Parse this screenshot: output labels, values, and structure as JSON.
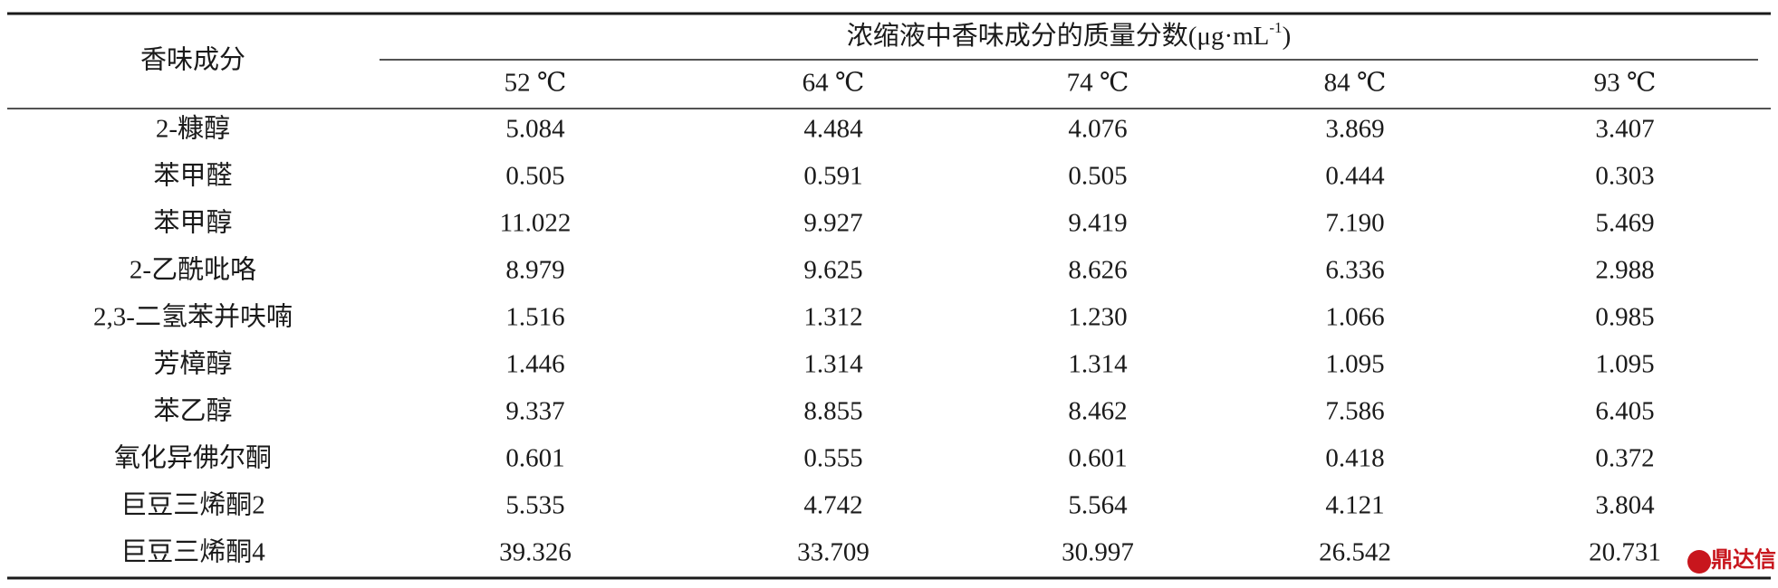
{
  "header": {
    "row_label": "香味成分",
    "group_title": "浓缩液中香味成分的质量分数(μg·mL",
    "group_title_sup": "-1",
    "group_title_end": ")",
    "columns": [
      "52 ℃",
      "64 ℃",
      "74 ℃",
      "84 ℃",
      "93 ℃"
    ]
  },
  "table": {
    "rows": [
      [
        "2-糠醇",
        "5.084",
        "4.484",
        "4.076",
        "3.869",
        "3.407"
      ],
      [
        "苯甲醛",
        "0.505",
        "0.591",
        "0.505",
        "0.444",
        "0.303"
      ],
      [
        "苯甲醇",
        "11.022",
        "9.927",
        "9.419",
        "7.190",
        "5.469"
      ],
      [
        "2-乙酰吡咯",
        "8.979",
        "9.625",
        "8.626",
        "6.336",
        "2.988"
      ],
      [
        "2,3-二氢苯并呋喃",
        "1.516",
        "1.312",
        "1.230",
        "1.066",
        "0.985"
      ],
      [
        "芳樟醇",
        "1.446",
        "1.314",
        "1.314",
        "1.095",
        "1.095"
      ],
      [
        "苯乙醇",
        "9.337",
        "8.855",
        "8.462",
        "7.586",
        "6.405"
      ],
      [
        "氧化异佛尔酮",
        "0.601",
        "0.555",
        "0.601",
        "0.418",
        "0.372"
      ],
      [
        "巨豆三烯酮2",
        "5.535",
        "4.742",
        "5.564",
        "4.121",
        "3.804"
      ],
      [
        "巨豆三烯酮4",
        "39.326",
        "33.709",
        "30.997",
        "26.542",
        "20.731"
      ]
    ]
  },
  "watermark": "鼎达信"
}
